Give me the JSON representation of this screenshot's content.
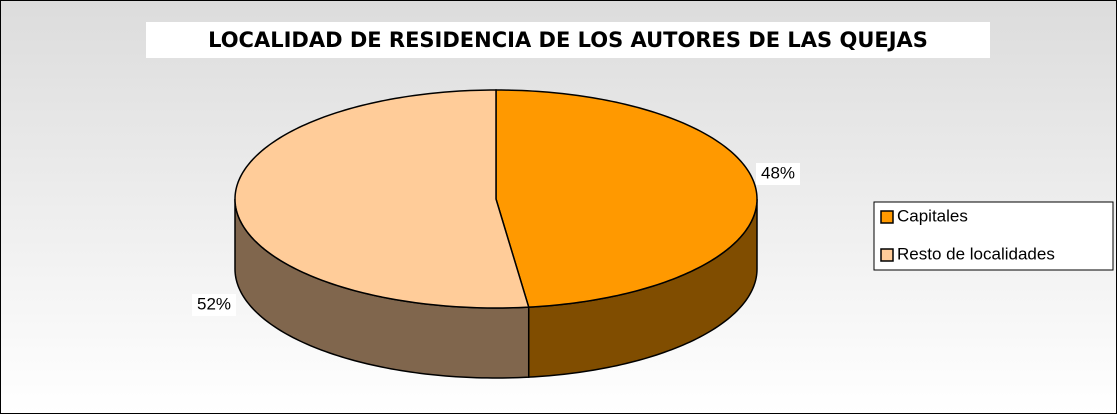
{
  "chart_data": {
    "type": "pie",
    "title": "LOCALIDAD DE RESIDENCIA DE LOS AUTORES DE LAS QUEJAS",
    "categories": [
      "Capitales",
      "Resto de localidades"
    ],
    "values": [
      48,
      52
    ],
    "value_labels": [
      "48%",
      "52%"
    ],
    "colors": [
      "#FF9900",
      "#FFCC99"
    ],
    "legend": "right"
  }
}
